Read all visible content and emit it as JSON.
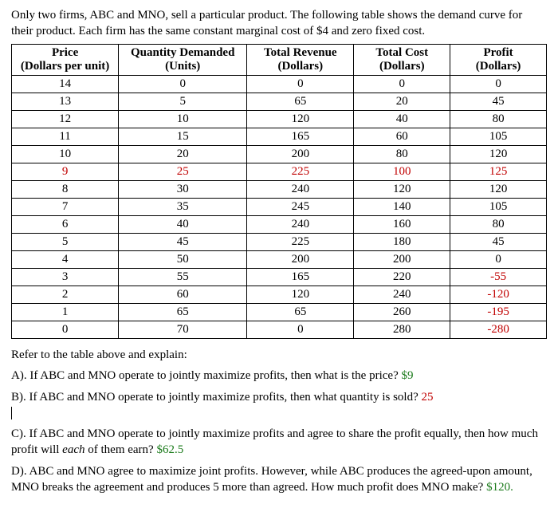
{
  "intro": {
    "line1": "Only two firms, ABC and MNO, sell a particular product. The following table shows the demand curve for their product. Each firm has the same constant marginal cost of $4 and zero fixed cost."
  },
  "table": {
    "columns": [
      {
        "h1": "Price",
        "h2": "(Dollars per unit)"
      },
      {
        "h1": "Quantity Demanded",
        "h2": "(Units)"
      },
      {
        "h1": "Total Revenue",
        "h2": "(Dollars)"
      },
      {
        "h1": "Total Cost",
        "h2": "(Dollars)"
      },
      {
        "h1": "Profit",
        "h2": "(Dollars)"
      }
    ],
    "widths_pct": [
      20,
      24,
      20,
      18,
      18
    ],
    "rows": [
      {
        "cells": [
          "14",
          "0",
          "0",
          "0",
          "0"
        ],
        "highlight": false
      },
      {
        "cells": [
          "13",
          "5",
          "65",
          "20",
          "45"
        ],
        "highlight": false
      },
      {
        "cells": [
          "12",
          "10",
          "120",
          "40",
          "80"
        ],
        "highlight": false
      },
      {
        "cells": [
          "11",
          "15",
          "165",
          "60",
          "105"
        ],
        "highlight": false
      },
      {
        "cells": [
          "10",
          "20",
          "200",
          "80",
          "120"
        ],
        "highlight": false
      },
      {
        "cells": [
          "9",
          "25",
          "225",
          "100",
          "125"
        ],
        "highlight": true
      },
      {
        "cells": [
          "8",
          "30",
          "240",
          "120",
          "120"
        ],
        "highlight": false
      },
      {
        "cells": [
          "7",
          "35",
          "245",
          "140",
          "105"
        ],
        "highlight": false
      },
      {
        "cells": [
          "6",
          "40",
          "240",
          "160",
          "80"
        ],
        "highlight": false
      },
      {
        "cells": [
          "5",
          "45",
          "225",
          "180",
          "45"
        ],
        "highlight": false
      },
      {
        "cells": [
          "4",
          "50",
          "200",
          "200",
          "0"
        ],
        "highlight": false
      },
      {
        "cells": [
          "3",
          "55",
          "165",
          "220",
          "-55"
        ],
        "highlight": false,
        "neg": [
          4
        ]
      },
      {
        "cells": [
          "2",
          "60",
          "120",
          "240",
          "-120"
        ],
        "highlight": false,
        "neg": [
          4
        ]
      },
      {
        "cells": [
          "1",
          "65",
          "65",
          "260",
          "-195"
        ],
        "highlight": false,
        "neg": [
          4
        ]
      },
      {
        "cells": [
          "0",
          "70",
          "0",
          "280",
          "-280"
        ],
        "highlight": false,
        "neg": [
          4
        ]
      }
    ]
  },
  "questions": {
    "refer": "Refer to the table above and explain:",
    "a_text": "A). If ABC and MNO operate to jointly maximize profits, then what is the price? ",
    "a_ans": "$9",
    "b_text": "B). If ABC and MNO operate to jointly maximize profits, then what quantity is sold? ",
    "b_ans": "25",
    "c_text": "C). If ABC and MNO operate to jointly maximize profits and agree to share the profit equally, then how much profit will ",
    "c_text_em": "each",
    "c_text2": " of them earn?  ",
    "c_ans": "$62.5",
    "d_text": "D). ABC and MNO agree to maximize joint profits. However, while ABC produces the agreed-upon amount, MNO breaks the agreement and produces 5 more than agreed. How much profit does MNO make?  ",
    "d_ans": "$120."
  }
}
